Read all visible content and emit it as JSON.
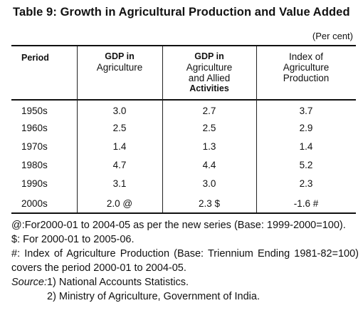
{
  "title": "Table 9: Growth in Agricultural Production and Value Added",
  "unit": "(Per cent)",
  "headers": {
    "period": "Period",
    "gdp_agri": [
      "GDP in",
      "Agriculture"
    ],
    "gdp_allied": [
      "GDP in",
      "Agriculture",
      "and Allied",
      "Activities"
    ],
    "index": [
      "Index of",
      "Agriculture",
      "Production"
    ]
  },
  "rows": [
    {
      "period": "1950s",
      "gdp_agri": "3.0",
      "gdp_allied": "2.7",
      "index": "3.7"
    },
    {
      "period": "1960s",
      "gdp_agri": "2.5",
      "gdp_allied": "2.5",
      "index": "2.9"
    },
    {
      "period": "1970s",
      "gdp_agri": "1.4",
      "gdp_allied": "1.3",
      "index": "1.4"
    },
    {
      "period": "1980s",
      "gdp_agri": "4.7",
      "gdp_allied": "4.4",
      "index": "5.2"
    },
    {
      "period": "1990s",
      "gdp_agri": "3.1",
      "gdp_allied": "3.0",
      "index": "2.3"
    },
    {
      "period": "2000s",
      "gdp_agri": "2.0 @",
      "gdp_allied": "2.3 $",
      "index": "-1.6 #"
    }
  ],
  "notes": {
    "at": "@:For2000-01 to 2004-05 as per the new series (Base: 1999-2000=100).",
    "dollar": "$: For 2000-01 to 2005-06.",
    "hash": "#: Index of Agriculture Production (Base: Triennium Ending 1981-82=100) covers the period 2000-01 to 2004-05.",
    "source_label": "Source:",
    "source_1": "1) National Accounts Statistics.",
    "source_2": "2) Ministry of Agriculture, Government of India."
  }
}
